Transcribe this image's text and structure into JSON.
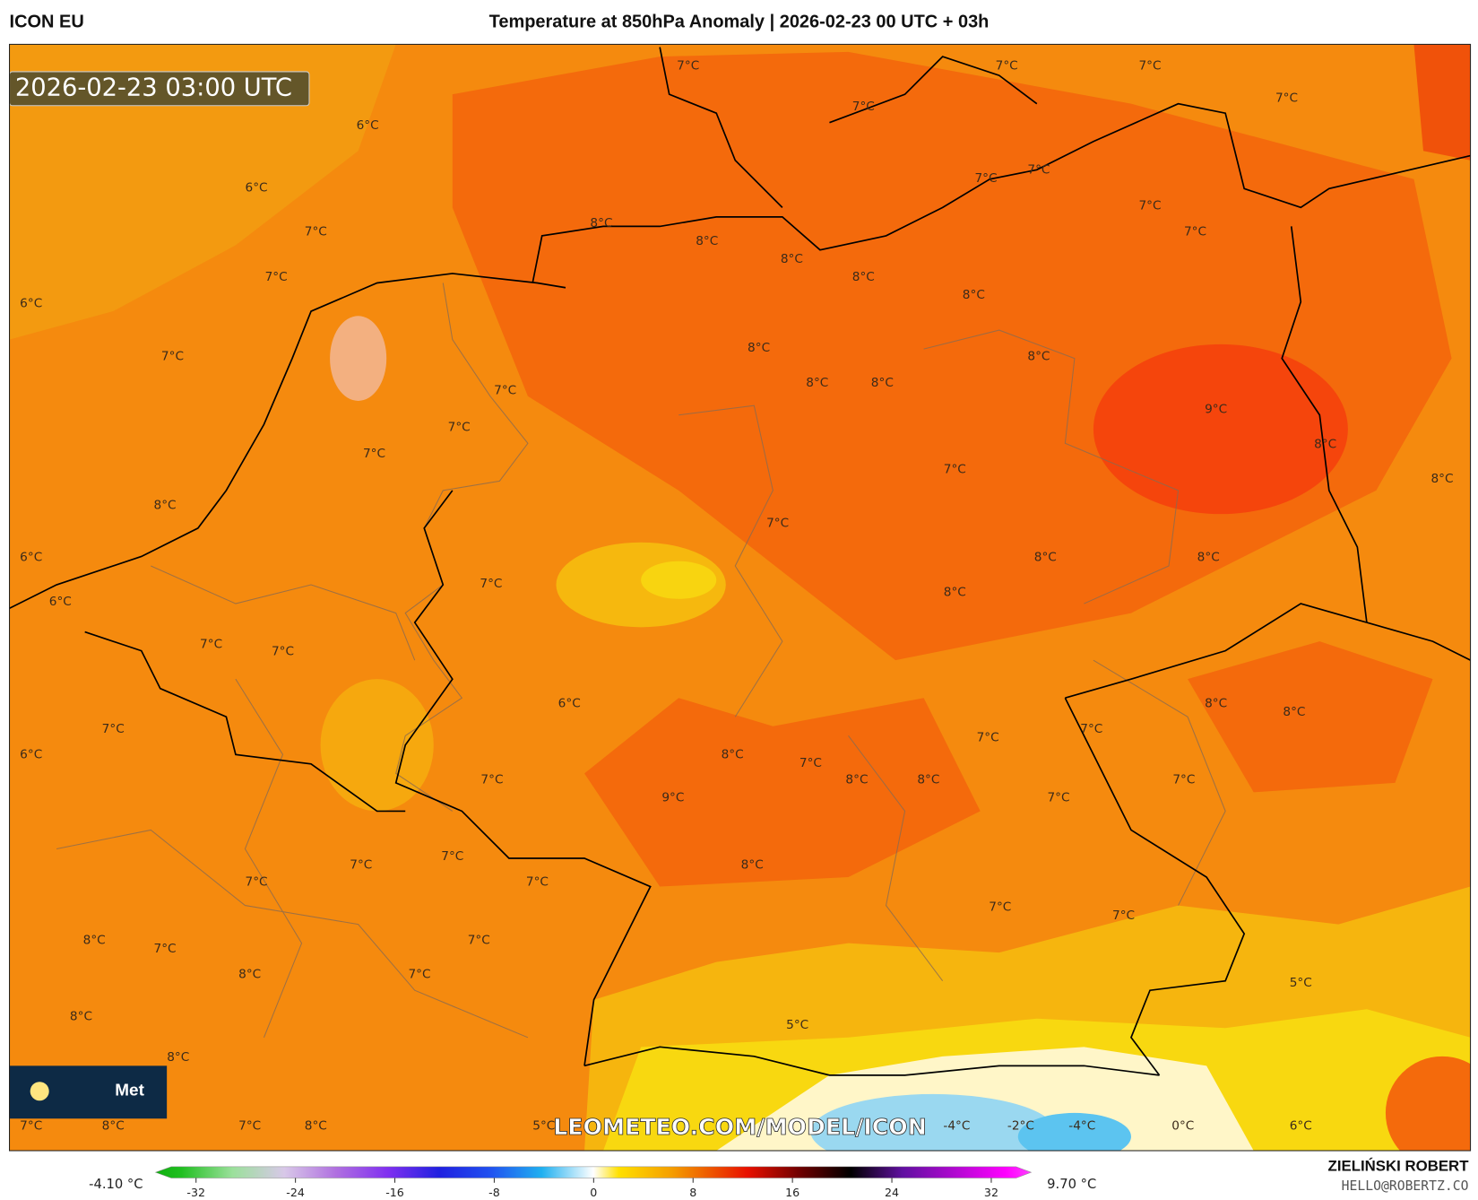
{
  "header": {
    "model": "ICON EU",
    "title": "Temperature at 850hPa Anomaly | 2026-02-23 00 UTC + 03h"
  },
  "map": {
    "timestamp": "2026-02-23 03:00 UTC",
    "labels": [
      "7°C",
      "7°C",
      "7°C",
      "7°C",
      "6°C",
      "7°C",
      "6°C",
      "7°C",
      "7°C",
      "7°C",
      "7°C",
      "8°C",
      "8°C",
      "7°C",
      "8°C",
      "7°C",
      "8°C",
      "6°C",
      "8°C",
      "7°C",
      "8°C",
      "8°C",
      "7°C",
      "8°C",
      "8°C",
      "9°C",
      "7°C",
      "7°C",
      "8°C",
      "7°C",
      "8°C",
      "8°C",
      "7°C",
      "6°C",
      "8°C",
      "8°C",
      "7°C",
      "8°C",
      "6°C",
      "7°C",
      "7°C",
      "6°C",
      "8°C",
      "8°C",
      "7°C",
      "7°C",
      "7°C",
      "6°C",
      "8°C",
      "7°C",
      "7°C",
      "8°C",
      "8°C",
      "7°C",
      "9°C",
      "7°C",
      "7°C",
      "7°C",
      "8°C",
      "7°C",
      "7°C",
      "7°C",
      "7°C",
      "8°C",
      "7°C",
      "7°C",
      "8°C",
      "7°C",
      "5°C",
      "8°C",
      "5°C",
      "8°C",
      "7°C",
      "8°C",
      "7°C",
      "8°C",
      "5°C",
      "-4°C",
      "-2°C",
      "-4°C",
      "0°C",
      "6°C"
    ],
    "watermark": "LEOMETEO.COM/MODEL/ICON",
    "logo": "Met"
  },
  "colorbar": {
    "min_label": "-4.10 °C",
    "max_label": "9.70 °C",
    "ticks": [
      -32,
      -24,
      -16,
      -8,
      0,
      8,
      16,
      24,
      32
    ],
    "lim": [
      -34,
      34
    ]
  },
  "credits": {
    "author": "ZIELIŃSKI ROBERT",
    "contact": "HELLO@ROBERTZ.CO"
  }
}
